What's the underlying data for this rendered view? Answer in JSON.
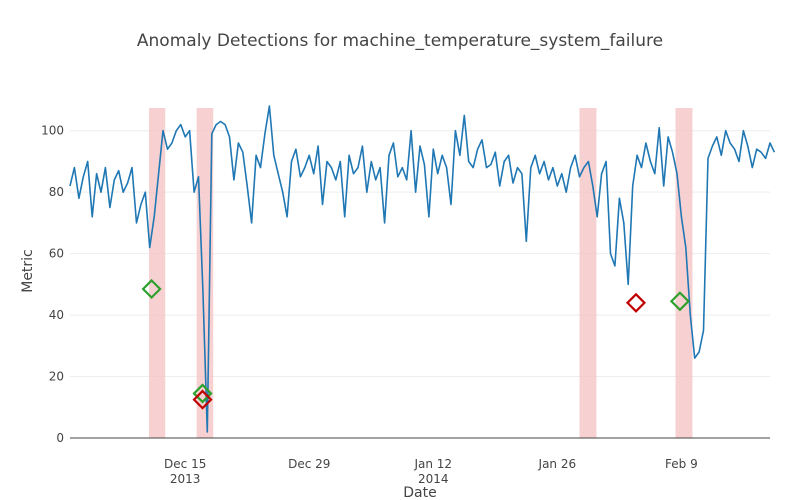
{
  "chart_data": {
    "type": "line",
    "title": "Anomaly Detections for machine_temperature_system_failure",
    "xlabel": "Date",
    "ylabel": "Metric",
    "ylim": [
      0,
      110
    ],
    "yticks": [
      0,
      20,
      40,
      60,
      80,
      100
    ],
    "xlim": [
      "2013-12-02",
      "2014-02-19"
    ],
    "xticks": [
      {
        "date": "2013-12-15",
        "label": "Dec 15",
        "sublabel": "2013"
      },
      {
        "date": "2013-12-29",
        "label": "Dec 29",
        "sublabel": ""
      },
      {
        "date": "2014-01-12",
        "label": "Jan 12",
        "sublabel": "2014"
      },
      {
        "date": "2014-01-26",
        "label": "Jan 26",
        "sublabel": ""
      },
      {
        "date": "2014-02-09",
        "label": "Feb 9",
        "sublabel": ""
      }
    ],
    "colors": {
      "series": "#1f77b4",
      "window": "#f4c2c2",
      "detection_correct": "#2ca02c",
      "detection_false": "#c00000",
      "axis": "#444444",
      "grid": "#eeeeee"
    },
    "anomaly_windows": [
      {
        "start": "2013-12-10T22:00",
        "end": "2013-12-12T18:00"
      },
      {
        "start": "2013-12-16T07:00",
        "end": "2013-12-18T04:00"
      },
      {
        "start": "2014-01-28T12:00",
        "end": "2014-01-30T10:00"
      },
      {
        "start": "2014-02-08T08:00",
        "end": "2014-02-10T06:00"
      }
    ],
    "detections": [
      {
        "date": "2013-12-11T05:00",
        "value": 48.5,
        "status": "correct"
      },
      {
        "date": "2013-12-16T23:00",
        "value": 14.5,
        "status": "correct"
      },
      {
        "date": "2013-12-16T23:00",
        "value": 12.5,
        "status": "false"
      },
      {
        "date": "2014-02-03T21:00",
        "value": 44.0,
        "status": "false"
      },
      {
        "date": "2014-02-08T20:00",
        "value": 44.5,
        "status": "correct"
      }
    ],
    "series": [
      {
        "name": "machine_temperature",
        "x_start": "2013-12-02",
        "step_hours": 12,
        "values": [
          82,
          88,
          78,
          85,
          90,
          72,
          86,
          80,
          88,
          75,
          84,
          87,
          80,
          83,
          88,
          70,
          76,
          80,
          62,
          72,
          86,
          100,
          94,
          96,
          100,
          102,
          98,
          100,
          80,
          85,
          48,
          2,
          99,
          102,
          103,
          102,
          98,
          84,
          96,
          93,
          82,
          70,
          92,
          88,
          99,
          108,
          92,
          86,
          80,
          72,
          90,
          94,
          85,
          88,
          92,
          86,
          95,
          76,
          90,
          88,
          84,
          90,
          72,
          92,
          86,
          88,
          95,
          80,
          90,
          84,
          88,
          70,
          92,
          96,
          85,
          88,
          84,
          100,
          80,
          95,
          89,
          72,
          94,
          86,
          92,
          88,
          76,
          100,
          92,
          105,
          90,
          88,
          94,
          97,
          88,
          89,
          93,
          82,
          90,
          92,
          83,
          88,
          86,
          64,
          88,
          92,
          86,
          90,
          84,
          88,
          82,
          86,
          80,
          88,
          92,
          85,
          88,
          90,
          82,
          72,
          86,
          90,
          60,
          56,
          78,
          70,
          50,
          82,
          92,
          88,
          96,
          90,
          86,
          101,
          82,
          98,
          93,
          86,
          72,
          62,
          40,
          26,
          28,
          35,
          91,
          95,
          98,
          92,
          100,
          96,
          94,
          90,
          100,
          95,
          88,
          94,
          93,
          91,
          96,
          93
        ]
      }
    ]
  }
}
